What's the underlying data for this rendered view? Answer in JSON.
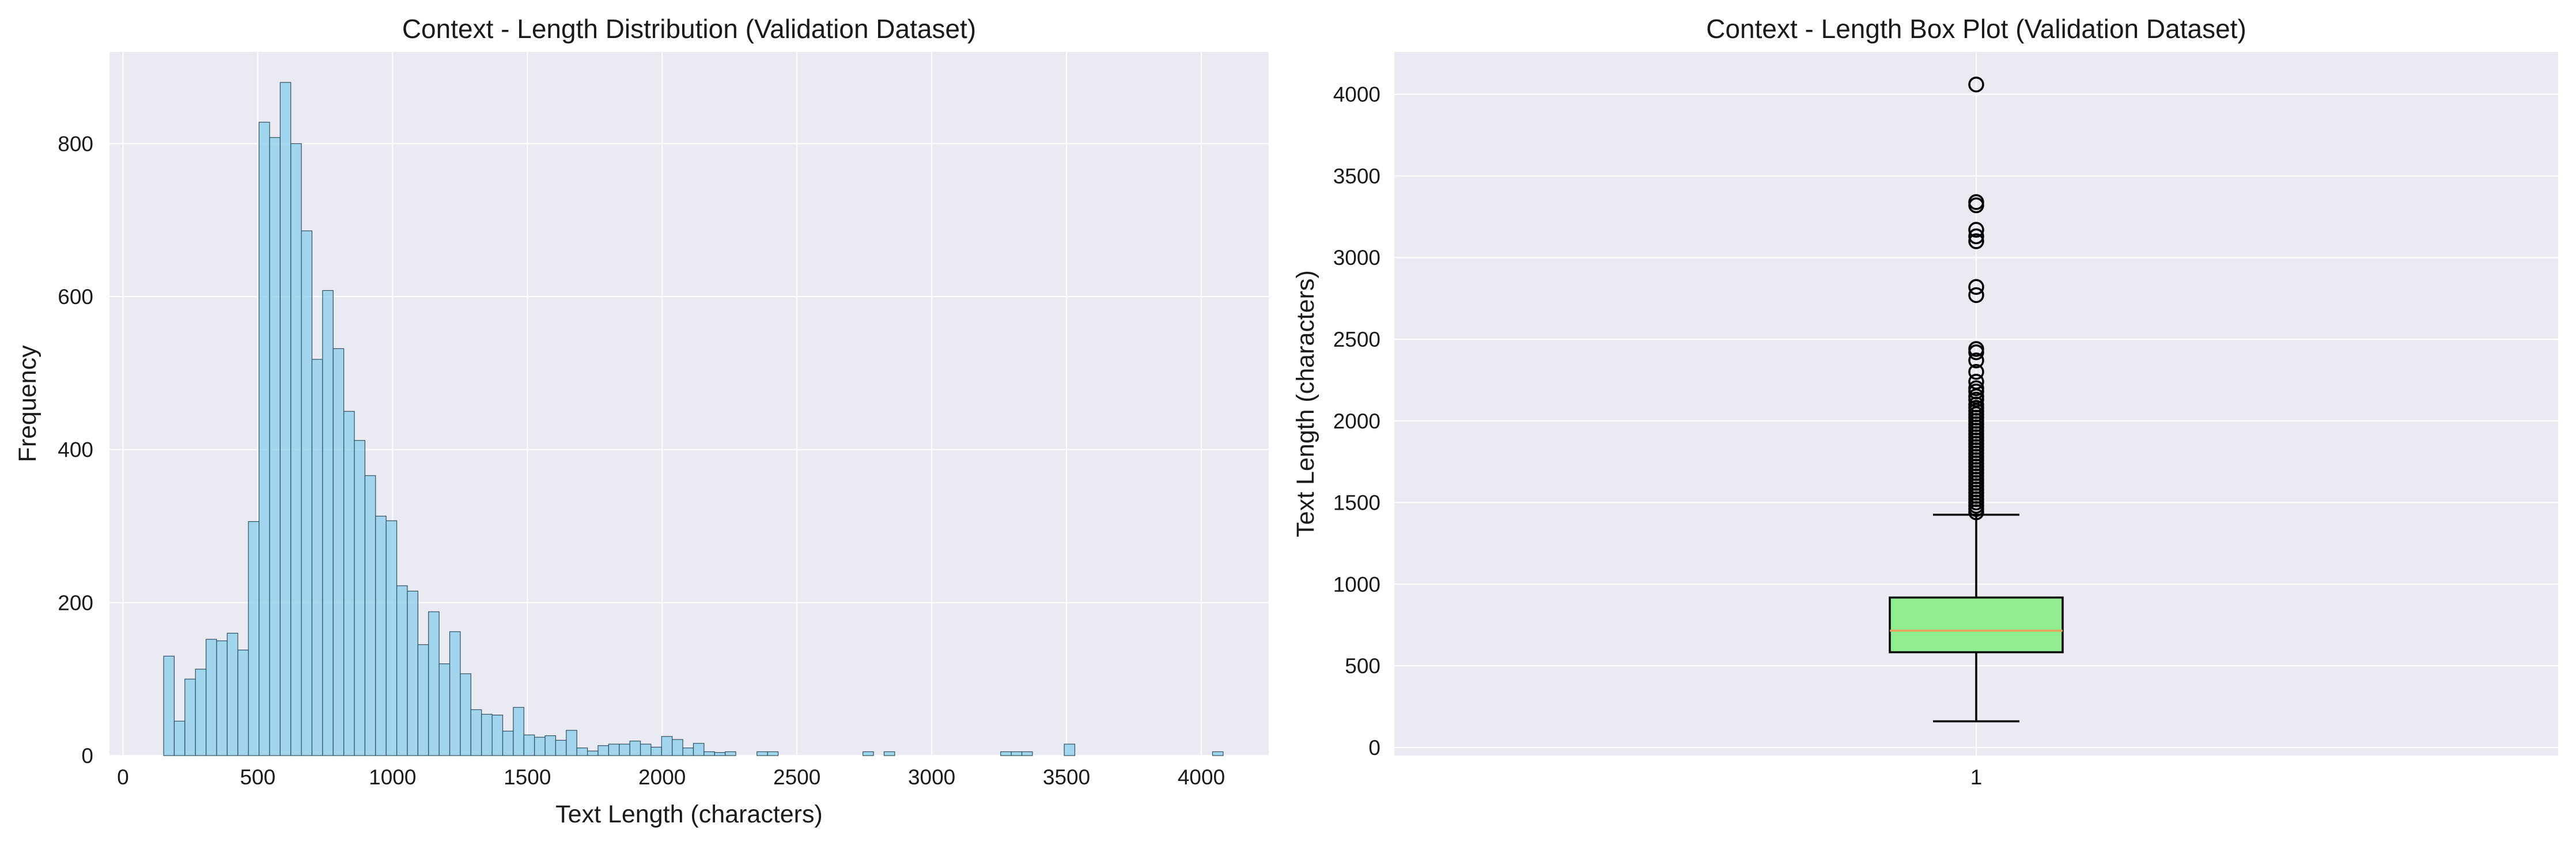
{
  "chart_data": [
    {
      "type": "bar",
      "title": "Context - Length Distribution (Validation Dataset)",
      "xlabel": "Text Length (characters)",
      "ylabel": "Frequency",
      "xlim": [
        -50,
        4250
      ],
      "ylim": [
        0,
        920
      ],
      "xticks": [
        0,
        500,
        1000,
        1500,
        2000,
        2500,
        3000,
        3500,
        4000
      ],
      "yticks": [
        0,
        200,
        400,
        600,
        800
      ],
      "grid": true,
      "colors": {
        "bar_fill": "#87ceeb",
        "bar_edge": "#2f4f5f",
        "background": "#eaeaf2",
        "grid": "#ffffff"
      },
      "bins": {
        "start": 151,
        "width": 39.3,
        "counts": [
          130,
          45,
          100,
          113,
          152,
          150,
          160,
          138,
          306,
          828,
          808,
          880,
          800,
          686,
          518,
          608,
          532,
          450,
          412,
          366,
          313,
          307,
          222,
          215,
          145,
          188,
          120,
          162,
          107,
          60,
          54,
          53,
          32,
          63,
          27,
          24,
          26,
          20,
          33,
          10,
          6,
          13,
          15,
          15,
          19,
          15,
          11,
          25,
          21,
          10,
          16,
          5,
          4,
          5,
          0,
          0,
          5,
          5,
          0,
          0,
          0,
          0,
          0,
          0,
          0,
          0,
          5,
          0,
          5,
          0,
          0,
          0,
          0,
          0,
          0,
          0,
          0,
          0,
          0,
          5,
          5,
          5,
          0,
          0,
          0,
          15,
          0,
          0,
          0,
          0,
          0,
          0,
          0,
          0,
          0,
          0,
          0,
          0,
          0,
          5
        ]
      }
    },
    {
      "type": "box",
      "title": "Context - Length Box Plot (Validation Dataset)",
      "xlabel": "",
      "ylabel": "Text Length (characters)",
      "ylim": [
        -50,
        4260
      ],
      "yticks": [
        0,
        500,
        1000,
        1500,
        2000,
        2500,
        3000,
        3500,
        4000
      ],
      "xticks": [
        "1"
      ],
      "grid": true,
      "colors": {
        "box_fill": "#90ee90",
        "median": "#e8a060",
        "background": "#eaeaf2",
        "grid": "#ffffff"
      },
      "box": {
        "whisker_low": 160,
        "q1": 583,
        "median": 715,
        "q3": 918,
        "whisker_high": 1425,
        "outliers": [
          4060,
          3340,
          3320,
          3170,
          3130,
          3100,
          2820,
          2770,
          2440,
          2420,
          2370,
          2300,
          2240,
          2200,
          2180,
          2150,
          2130,
          2100,
          2080,
          2060,
          2040,
          2020,
          2000,
          1980,
          1960,
          1940,
          1920,
          1900,
          1880,
          1860,
          1840,
          1820,
          1800,
          1780,
          1760,
          1740,
          1720,
          1700,
          1680,
          1660,
          1640,
          1620,
          1600,
          1580,
          1560,
          1540,
          1520,
          1500,
          1480,
          1460,
          1440
        ]
      }
    }
  ]
}
